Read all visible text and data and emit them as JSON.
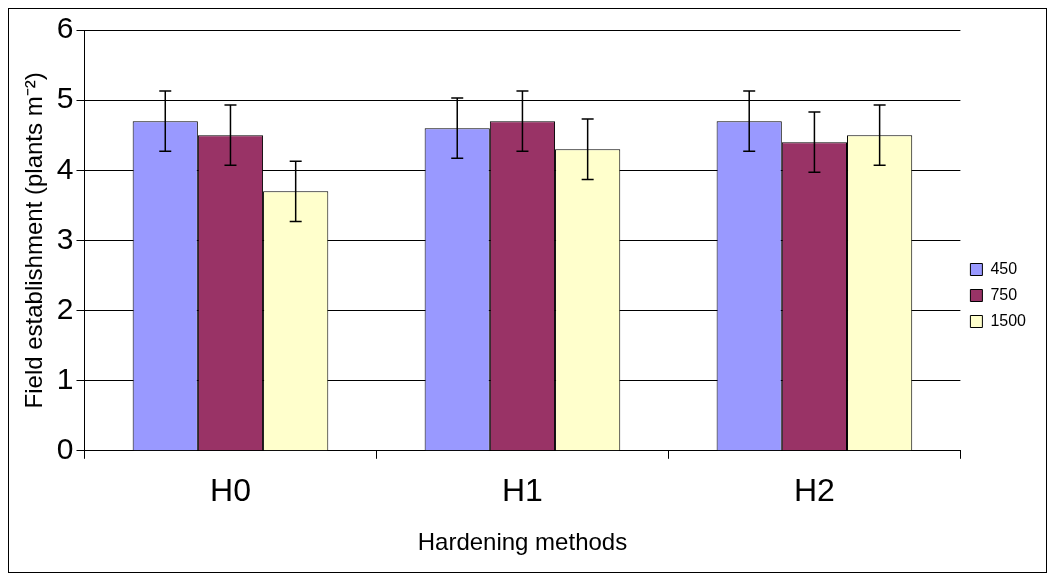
{
  "chart_data": {
    "type": "bar",
    "xlabel": "Hardening methods",
    "ylabel": "Field establishment (plants m⁻²)",
    "categories": [
      "H0",
      "H1",
      "H2"
    ],
    "series": [
      {
        "name": "450",
        "color": "#9999ff",
        "values": [
          4.7,
          4.6,
          4.7
        ],
        "errors": [
          0.43,
          0.43,
          0.43
        ]
      },
      {
        "name": "750",
        "color": "#993366",
        "values": [
          4.5,
          4.7,
          4.4
        ],
        "errors": [
          0.43,
          0.43,
          0.43
        ]
      },
      {
        "name": "1500",
        "color": "#ffffcc",
        "values": [
          3.7,
          4.3,
          4.5
        ],
        "errors": [
          0.43,
          0.43,
          0.43
        ]
      }
    ],
    "ylim": [
      0,
      6
    ],
    "yticks": [
      0,
      1,
      2,
      3,
      4,
      5,
      6
    ],
    "grid": "y",
    "legend": "right"
  }
}
